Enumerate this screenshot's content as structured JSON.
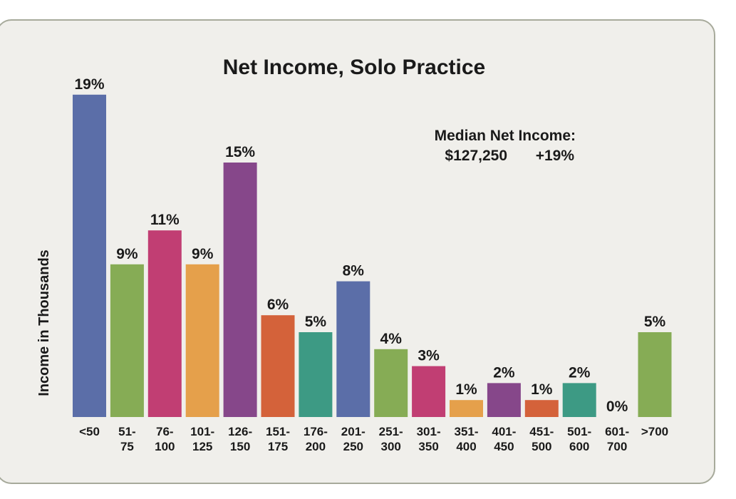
{
  "chart_data": {
    "type": "bar",
    "title": "Net Income, Solo Practice",
    "ylabel": "Income in Thousands",
    "xlabel": "",
    "annotation": {
      "line1": "Median Net Income:",
      "value": "$127,250",
      "change": "+19%"
    },
    "ylim": [
      0,
      19
    ],
    "grid": false,
    "categories": [
      [
        "<50"
      ],
      [
        "51-",
        "75"
      ],
      [
        "76-",
        "100"
      ],
      [
        "101-",
        "125"
      ],
      [
        "126-",
        "150"
      ],
      [
        "151-",
        "175"
      ],
      [
        "176-",
        "200"
      ],
      [
        "201-",
        "250"
      ],
      [
        "251-",
        "300"
      ],
      [
        "301-",
        "350"
      ],
      [
        "351-",
        "400"
      ],
      [
        "401-",
        "450"
      ],
      [
        "451-",
        "500"
      ],
      [
        "501-",
        "600"
      ],
      [
        "601-",
        "700"
      ],
      [
        ">700"
      ]
    ],
    "values": [
      19,
      9,
      11,
      9,
      15,
      6,
      5,
      8,
      4,
      3,
      1,
      2,
      1,
      2,
      0,
      5
    ],
    "labels": [
      "19%",
      "9%",
      "11%",
      "9%",
      "15%",
      "6%",
      "5%",
      "8%",
      "4%",
      "3%",
      "1%",
      "2%",
      "1%",
      "2%",
      "0%",
      "5%"
    ],
    "colors": [
      "#5b6ea8",
      "#86ac55",
      "#c13e73",
      "#e5a04b",
      "#86478a",
      "#d4623a",
      "#3d9a84",
      "#5b6ea8",
      "#86ac55",
      "#c13e73",
      "#e5a04b",
      "#86478a",
      "#d4623a",
      "#3d9a84",
      "#86478a",
      "#86ac55"
    ]
  }
}
